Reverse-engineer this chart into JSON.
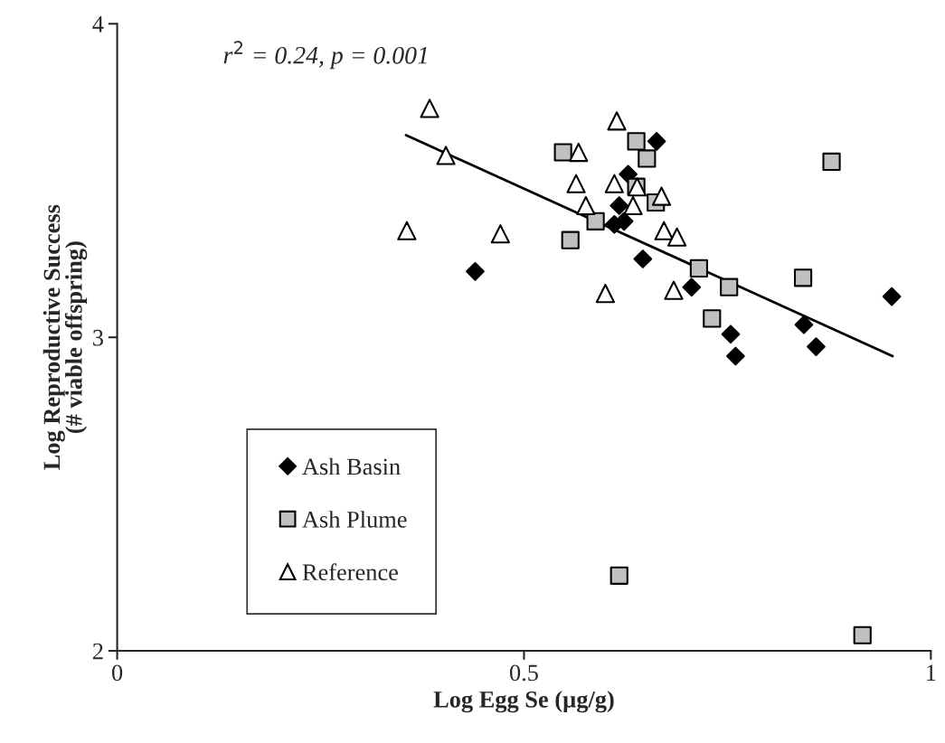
{
  "chart_data": {
    "type": "scatter",
    "xlabel": "Log Egg Se (µg/g)",
    "ylabel": "Log Reproductive Success\n(# viable offspring)",
    "annotations": [
      "r$^{2}$ = 0.24, p = 0.001"
    ],
    "xlim": [
      0,
      1
    ],
    "xticks": [
      0,
      0.5,
      1
    ],
    "ylim": [
      2,
      4
    ],
    "yticks": [
      2,
      3,
      4
    ],
    "grid": false,
    "legend": "bottom left",
    "series": [
      {
        "name": "Ash Basin",
        "color": "#000000",
        "marker": "diamond",
        "x": [
          0.44,
          0.663,
          0.628,
          0.617,
          0.623,
          0.611,
          0.646,
          0.706,
          0.754,
          0.76,
          0.844,
          0.859,
          0.952
        ],
        "values": [
          3.21,
          3.625,
          3.52,
          3.42,
          3.37,
          3.36,
          3.25,
          3.16,
          3.01,
          2.94,
          3.04,
          2.97,
          3.13
        ]
      },
      {
        "name": "Ash Plume",
        "color": "#c0c0c0",
        "marker": "square",
        "x": [
          0.548,
          0.638,
          0.651,
          0.638,
          0.662,
          0.588,
          0.557,
          0.715,
          0.752,
          0.731,
          0.843,
          0.878,
          0.617,
          0.916
        ],
        "values": [
          3.59,
          3.625,
          3.57,
          3.48,
          3.43,
          3.37,
          3.31,
          3.22,
          3.16,
          3.06,
          3.19,
          3.56,
          2.24,
          2.05
        ]
      },
      {
        "name": "Reference",
        "color": "#ffffff",
        "marker": "triangle",
        "x": [
          0.384,
          0.404,
          0.356,
          0.471,
          0.614,
          0.567,
          0.564,
          0.611,
          0.576,
          0.639,
          0.634,
          0.669,
          0.672,
          0.688,
          0.6,
          0.684
        ],
        "values": [
          3.73,
          3.58,
          3.34,
          3.33,
          3.69,
          3.59,
          3.49,
          3.49,
          3.42,
          3.48,
          3.42,
          3.45,
          3.34,
          3.32,
          3.14,
          3.15
        ]
      },
      {
        "type": "line",
        "color": "#000000",
        "marker": "none",
        "x": [
          0.355,
          0.953
        ],
        "values": [
          3.645,
          2.94
        ]
      }
    ]
  }
}
